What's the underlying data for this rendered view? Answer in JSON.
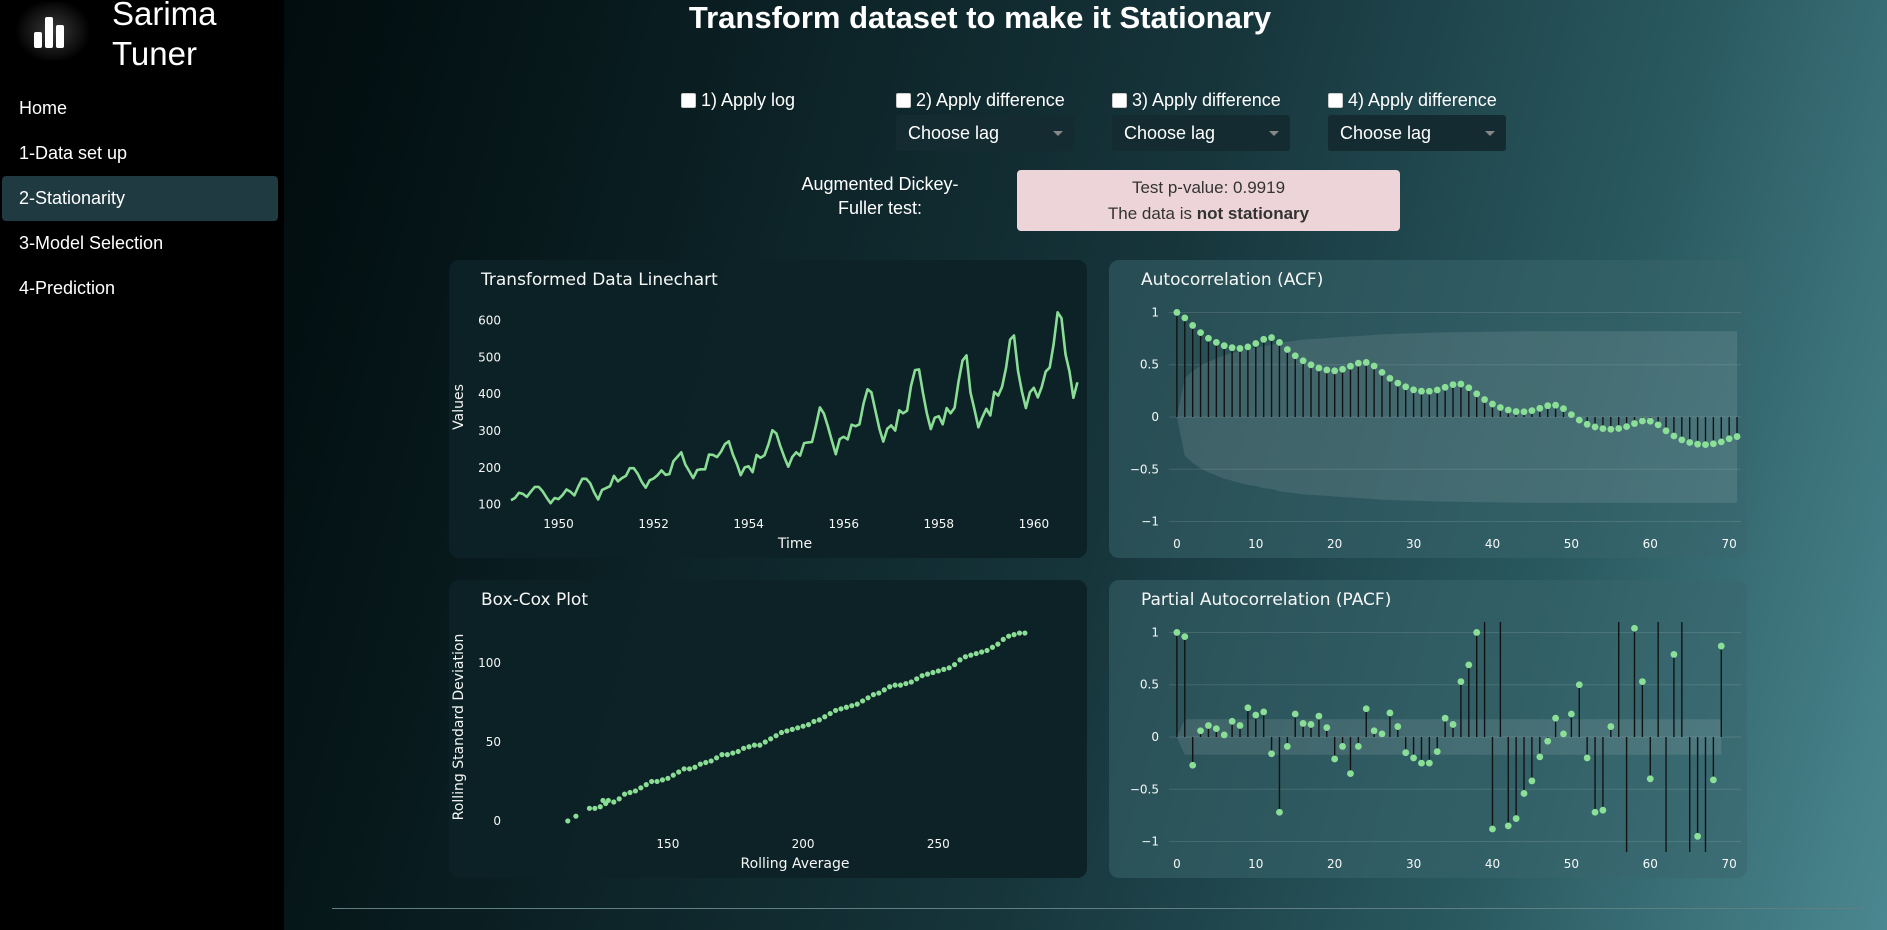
{
  "app": {
    "brand_line1": "Sarima",
    "brand_line2": "Tuner"
  },
  "sidebar": {
    "items": [
      {
        "label": "Home"
      },
      {
        "label": "1-Data set up"
      },
      {
        "label": "2-Stationarity"
      },
      {
        "label": "3-Model Selection"
      },
      {
        "label": "4-Prediction"
      }
    ],
    "active_index": 2
  },
  "page": {
    "title": "Transform dataset to make it Stationary"
  },
  "controls": {
    "log": "1) Apply log",
    "diff2": "2) Apply difference",
    "diff3": "3) Apply difference",
    "diff4": "4) Apply difference",
    "lag_placeholder": "Choose lag"
  },
  "adf": {
    "label_line1": "Augmented Dickey-",
    "label_line2": "Fuller test:",
    "pvalue_text": "Test p-value: 0.9919",
    "result_prefix": "The data is ",
    "result_bold": "not stationary"
  },
  "colors": {
    "series": "#8fe59a",
    "accent": "#1f3a40",
    "pbox": "#ecd4d8"
  },
  "chart_data": [
    {
      "id": "line",
      "type": "line",
      "title": "Transformed Data Linechart",
      "xlabel": "Time",
      "ylabel": "Values",
      "xlim": [
        1949,
        1960.95
      ],
      "ylim": [
        80,
        650
      ],
      "xticks": [
        1950,
        1952,
        1954,
        1956,
        1958,
        1960
      ],
      "yticks": [
        100,
        200,
        300,
        400,
        500,
        600
      ],
      "x_start": 1949,
      "x_step": 0.08333,
      "values": [
        112,
        118,
        132,
        129,
        121,
        135,
        148,
        148,
        136,
        119,
        104,
        118,
        115,
        126,
        141,
        135,
        125,
        149,
        170,
        170,
        158,
        133,
        114,
        140,
        145,
        150,
        178,
        163,
        172,
        178,
        199,
        199,
        184,
        162,
        146,
        166,
        171,
        180,
        193,
        181,
        183,
        218,
        230,
        242,
        209,
        191,
        172,
        194,
        196,
        196,
        236,
        235,
        229,
        243,
        264,
        272,
        237,
        211,
        180,
        201,
        204,
        188,
        235,
        227,
        234,
        264,
        302,
        293,
        259,
        229,
        203,
        229,
        242,
        233,
        267,
        269,
        270,
        315,
        364,
        347,
        312,
        274,
        237,
        278,
        284,
        277,
        317,
        313,
        318,
        374,
        413,
        405,
        355,
        306,
        271,
        306,
        315,
        301,
        356,
        348,
        355,
        422,
        465,
        467,
        404,
        347,
        305,
        336,
        340,
        318,
        362,
        348,
        363,
        435,
        491,
        505,
        404,
        359,
        310,
        337,
        360,
        342,
        406,
        396,
        420,
        472,
        548,
        559,
        463,
        407,
        362,
        405,
        417,
        391,
        419,
        461,
        472,
        535,
        622,
        606,
        508,
        461,
        390,
        432
      ]
    },
    {
      "id": "acf",
      "type": "scatter",
      "title": "Autocorrelation (ACF)",
      "xlim": [
        -1,
        71.5
      ],
      "ylim": [
        -1.1,
        1.1
      ],
      "xticks": [
        0,
        10,
        20,
        30,
        40,
        50,
        60,
        70
      ],
      "yticks": [
        1,
        0.5,
        0,
        -0.5,
        -1
      ],
      "ytick_labels": [
        "1",
        "0.5",
        "0",
        "−0.5",
        "−1"
      ],
      "values": [
        1,
        0.948,
        0.876,
        0.807,
        0.753,
        0.714,
        0.682,
        0.663,
        0.656,
        0.671,
        0.703,
        0.743,
        0.76,
        0.713,
        0.646,
        0.586,
        0.538,
        0.499,
        0.469,
        0.45,
        0.442,
        0.457,
        0.486,
        0.515,
        0.522,
        0.488,
        0.427,
        0.37,
        0.324,
        0.289,
        0.26,
        0.247,
        0.246,
        0.258,
        0.284,
        0.31,
        0.315,
        0.28,
        0.222,
        0.167,
        0.124,
        0.091,
        0.067,
        0.052,
        0.05,
        0.061,
        0.083,
        0.108,
        0.113,
        0.08,
        0.023,
        -0.03,
        -0.07,
        -0.095,
        -0.111,
        -0.117,
        -0.11,
        -0.092,
        -0.063,
        -0.038,
        -0.04,
        -0.075,
        -0.132,
        -0.182,
        -0.219,
        -0.244,
        -0.26,
        -0.264,
        -0.256,
        -0.238,
        -0.208,
        -0.187
      ],
      "conf_band": [
        0,
        0.37,
        0.44,
        0.49,
        0.53,
        0.56,
        0.59,
        0.61,
        0.63,
        0.65,
        0.66,
        0.68,
        0.69,
        0.71,
        0.72,
        0.73,
        0.74,
        0.745,
        0.75,
        0.755,
        0.76,
        0.765,
        0.77,
        0.775,
        0.78,
        0.785,
        0.79,
        0.793,
        0.796,
        0.799,
        0.8,
        0.803,
        0.805,
        0.807,
        0.809,
        0.81,
        0.812,
        0.813,
        0.814,
        0.815,
        0.816,
        0.817,
        0.818,
        0.819,
        0.82,
        0.82,
        0.82,
        0.82,
        0.82,
        0.82,
        0.82,
        0.82,
        0.82,
        0.82,
        0.82,
        0.82,
        0.82,
        0.82,
        0.82,
        0.82,
        0.82,
        0.82,
        0.82,
        0.82,
        0.82,
        0.82,
        0.82,
        0.82,
        0.82,
        0.82,
        0.82,
        0.82
      ]
    },
    {
      "id": "boxcox",
      "type": "scatter",
      "title": "Box-Cox Plot",
      "xlabel": "Rolling Average",
      "ylabel": "Rolling Standard Deviation",
      "xlim": [
        92,
        302
      ],
      "ylim": [
        -7,
        126
      ],
      "xticks": [
        150,
        200,
        250
      ],
      "yticks": [
        0,
        50,
        100
      ],
      "points": [
        [
          113,
          0
        ],
        [
          116,
          3
        ],
        [
          121,
          8
        ],
        [
          123,
          8
        ],
        [
          125,
          9
        ],
        [
          126,
          13
        ],
        [
          127,
          11
        ],
        [
          128,
          13
        ],
        [
          130,
          12
        ],
        [
          132,
          14
        ],
        [
          134,
          17
        ],
        [
          136,
          18
        ],
        [
          138,
          19
        ],
        [
          140,
          21
        ],
        [
          142,
          23
        ],
        [
          144,
          25
        ],
        [
          146,
          25
        ],
        [
          148,
          26
        ],
        [
          150,
          27
        ],
        [
          152,
          29
        ],
        [
          154,
          31
        ],
        [
          156,
          33
        ],
        [
          158,
          33
        ],
        [
          160,
          34
        ],
        [
          162,
          36
        ],
        [
          164,
          37
        ],
        [
          166,
          38
        ],
        [
          168,
          40
        ],
        [
          170,
          42
        ],
        [
          172,
          42
        ],
        [
          174,
          43
        ],
        [
          176,
          44
        ],
        [
          178,
          46
        ],
        [
          180,
          47
        ],
        [
          182,
          48
        ],
        [
          184,
          48
        ],
        [
          186,
          50
        ],
        [
          188,
          52
        ],
        [
          190,
          54
        ],
        [
          192,
          56
        ],
        [
          194,
          57
        ],
        [
          196,
          58
        ],
        [
          198,
          59
        ],
        [
          200,
          60
        ],
        [
          202,
          61
        ],
        [
          204,
          63
        ],
        [
          206,
          64
        ],
        [
          208,
          66
        ],
        [
          210,
          68
        ],
        [
          212,
          70
        ],
        [
          214,
          71
        ],
        [
          216,
          72
        ],
        [
          218,
          73
        ],
        [
          220,
          74
        ],
        [
          222,
          76
        ],
        [
          224,
          78
        ],
        [
          226,
          80
        ],
        [
          228,
          81
        ],
        [
          230,
          83
        ],
        [
          232,
          85
        ],
        [
          234,
          86
        ],
        [
          236,
          86
        ],
        [
          238,
          87
        ],
        [
          240,
          88
        ],
        [
          242,
          90
        ],
        [
          244,
          92
        ],
        [
          246,
          93
        ],
        [
          248,
          94
        ],
        [
          250,
          95
        ],
        [
          252,
          96
        ],
        [
          254,
          97
        ],
        [
          256,
          99
        ],
        [
          258,
          102
        ],
        [
          260,
          104
        ],
        [
          262,
          105
        ],
        [
          264,
          106
        ],
        [
          266,
          107
        ],
        [
          268,
          108
        ],
        [
          270,
          110
        ],
        [
          272,
          112
        ],
        [
          274,
          115
        ],
        [
          276,
          117
        ],
        [
          278,
          118
        ],
        [
          280,
          119
        ],
        [
          282,
          119
        ]
      ]
    },
    {
      "id": "pacf",
      "type": "scatter",
      "title": "Partial Autocorrelation (PACF)",
      "xlim": [
        -1,
        71.5
      ],
      "ylim": [
        -1.1,
        1.1
      ],
      "xticks": [
        0,
        10,
        20,
        30,
        40,
        50,
        60,
        70
      ],
      "yticks": [
        1,
        0.5,
        0,
        -0.5,
        -1
      ],
      "ytick_labels": [
        "1",
        "0.5",
        "0",
        "−0.5",
        "−1"
      ],
      "values": [
        1,
        0.96,
        -0.27,
        0.06,
        0.11,
        0.08,
        0.02,
        0.15,
        0.11,
        0.28,
        0.21,
        0.24,
        -0.16,
        -0.72,
        -0.09,
        0.22,
        0.13,
        0.12,
        0.2,
        0.09,
        -0.21,
        -0.09,
        -0.35,
        -0.09,
        0.27,
        0.06,
        0.03,
        0.23,
        0.1,
        -0.15,
        -0.2,
        -0.25,
        -0.25,
        -0.14,
        0.18,
        0.12,
        0.53,
        0.69,
        1.0,
        1.1,
        -0.88,
        1.1,
        -0.85,
        -0.78,
        -0.54,
        -0.42,
        -0.19,
        -0.04,
        0.18,
        0.03,
        0.22,
        0.5,
        -0.2,
        -0.72,
        -0.7,
        0.1,
        1.1,
        -1.1,
        1.04,
        0.53,
        -0.4,
        1.1,
        -1.1,
        0.79,
        1.1,
        -1.1,
        -0.95,
        -1.1,
        -0.41,
        0.87
      ],
      "conf_band": 0.17
    }
  ]
}
